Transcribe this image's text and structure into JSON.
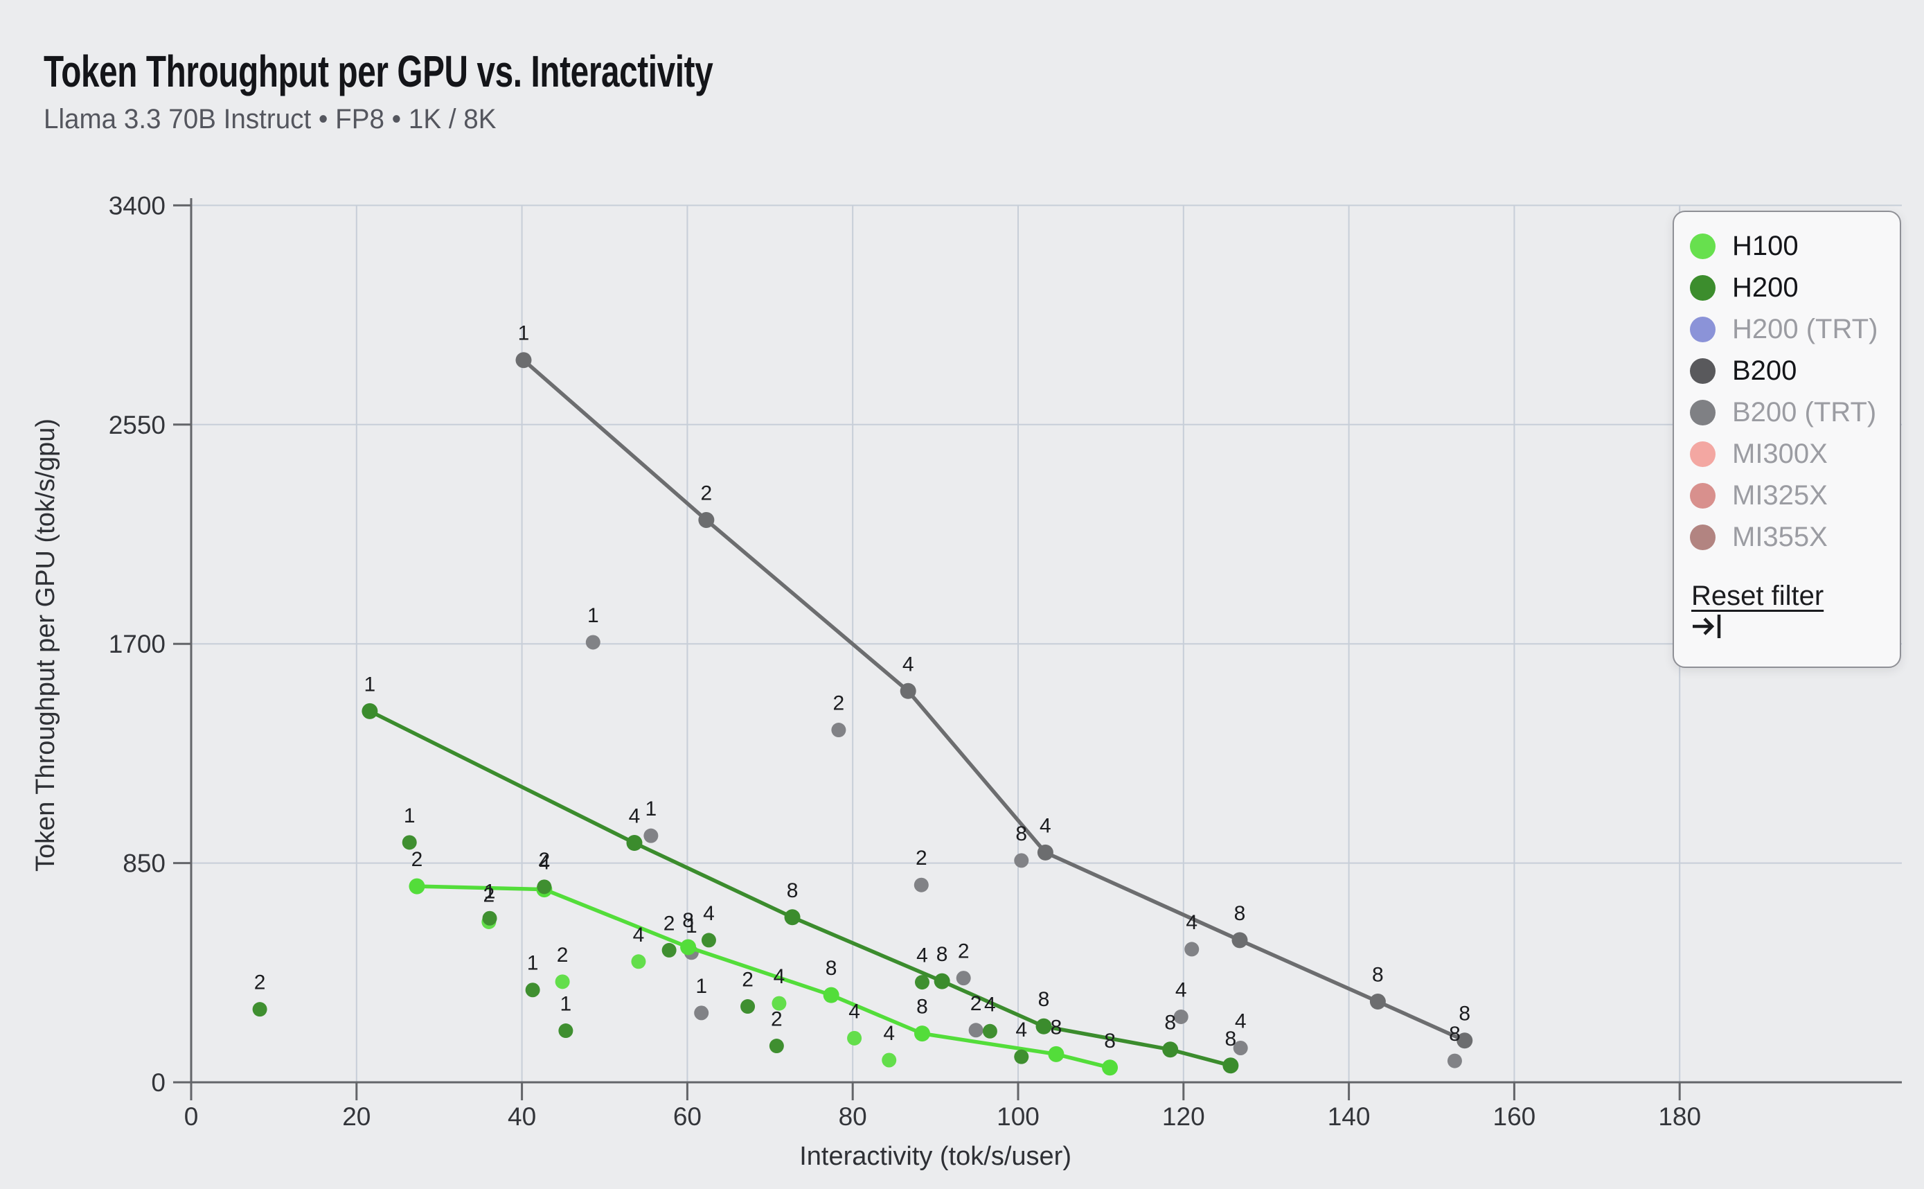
{
  "title": "Token Throughput per GPU vs. Interactivity",
  "subtitle": "Llama 3.3 70B Instruct • FP8 • 1K / 8K",
  "legend": {
    "items": [
      {
        "label": "H100",
        "color": "#67e04e",
        "active": true
      },
      {
        "label": "H200",
        "color": "#3c8d2d",
        "active": true
      },
      {
        "label": "H200 (TRT)",
        "color": "#8b93d8",
        "active": false
      },
      {
        "label": "B200",
        "color": "#59595c",
        "active": true
      },
      {
        "label": "B200 (TRT)",
        "color": "#7f8084",
        "active": false
      },
      {
        "label": "MI300X",
        "color": "#f3a7a2",
        "active": false
      },
      {
        "label": "MI325X",
        "color": "#d8908d",
        "active": false
      },
      {
        "label": "MI355X",
        "color": "#b28481",
        "active": false
      }
    ],
    "reset_label": "Reset filter",
    "collapse_icon": "tab-arrow-right"
  },
  "chart_data": {
    "type": "scatter",
    "title": "Token Throughput per GPU vs. Interactivity",
    "subtitle": "Llama 3.3 70B Instruct • FP8 • 1K / 8K",
    "xlabel": "Interactivity (tok/s/user)",
    "ylabel": "Token Throughput per GPU (tok/s/gpu)",
    "xlim": [
      0,
      180
    ],
    "ylim": [
      0,
      3400
    ],
    "x_ticks": [
      0,
      20,
      40,
      60,
      80,
      100,
      120,
      140,
      160,
      180
    ],
    "y_ticks": [
      0,
      850,
      1700,
      2550,
      3400
    ],
    "grid": true,
    "legend_position": "right",
    "point_label_meaning": "tensor-parallel size (number of GPUs)",
    "series": [
      {
        "name": "B200",
        "line_color": "#6c6d6f",
        "point_color": "#818286",
        "pareto_line": [
          {
            "x": 40.2,
            "y": 2800,
            "label": "1"
          },
          {
            "x": 62.3,
            "y": 2180,
            "label": "2"
          },
          {
            "x": 86.7,
            "y": 1517,
            "label": "4"
          },
          {
            "x": 103.3,
            "y": 891,
            "label": "4"
          },
          {
            "x": 126.8,
            "y": 551,
            "label": "8"
          },
          {
            "x": 143.5,
            "y": 313,
            "label": "8"
          },
          {
            "x": 154.0,
            "y": 162,
            "label": "8"
          }
        ],
        "points": [
          {
            "x": 48.6,
            "y": 1706,
            "label": "1"
          },
          {
            "x": 55.6,
            "y": 956,
            "label": "1"
          },
          {
            "x": 60.5,
            "y": 503,
            "label": "1"
          },
          {
            "x": 61.7,
            "y": 269,
            "label": "1"
          },
          {
            "x": 78.3,
            "y": 1366,
            "label": "2"
          },
          {
            "x": 88.3,
            "y": 765,
            "label": "2"
          },
          {
            "x": 93.4,
            "y": 404,
            "label": "2"
          },
          {
            "x": 94.9,
            "y": 202,
            "label": "2"
          },
          {
            "x": 100.4,
            "y": 860,
            "label": "8"
          },
          {
            "x": 119.7,
            "y": 254,
            "label": "4"
          },
          {
            "x": 121.0,
            "y": 516,
            "label": "4"
          },
          {
            "x": 126.9,
            "y": 133,
            "label": "4"
          },
          {
            "x": 152.8,
            "y": 83,
            "label": "8"
          }
        ]
      },
      {
        "name": "H100",
        "line_color": "#53dd3a",
        "point_color": "#63de4b",
        "pareto_line": [
          {
            "x": 27.3,
            "y": 760,
            "label": "2"
          },
          {
            "x": 42.7,
            "y": 748,
            "label": "4"
          },
          {
            "x": 60.1,
            "y": 524,
            "label": "8"
          },
          {
            "x": 77.4,
            "y": 338,
            "label": "8"
          },
          {
            "x": 88.4,
            "y": 189,
            "label": "8"
          },
          {
            "x": 104.6,
            "y": 109,
            "label": "8"
          },
          {
            "x": 111.1,
            "y": 57,
            "label": "8"
          }
        ],
        "points": [
          {
            "x": 36.0,
            "y": 622,
            "label": "2"
          },
          {
            "x": 44.9,
            "y": 390,
            "label": "2"
          },
          {
            "x": 54.1,
            "y": 468,
            "label": "4"
          },
          {
            "x": 71.1,
            "y": 306,
            "label": "4"
          },
          {
            "x": 80.2,
            "y": 171,
            "label": "4"
          },
          {
            "x": 84.4,
            "y": 86,
            "label": "4"
          }
        ]
      },
      {
        "name": "H200",
        "line_color": "#3b8c2d",
        "point_color": "#3f8f30",
        "pareto_line": [
          {
            "x": 21.6,
            "y": 1439,
            "label": "1"
          },
          {
            "x": 53.6,
            "y": 928,
            "label": "4"
          },
          {
            "x": 72.7,
            "y": 640,
            "label": "8"
          },
          {
            "x": 90.8,
            "y": 392,
            "label": "8"
          },
          {
            "x": 103.1,
            "y": 217,
            "label": "8"
          },
          {
            "x": 118.4,
            "y": 127,
            "label": "8"
          },
          {
            "x": 125.7,
            "y": 65,
            "label": "8"
          }
        ],
        "points": [
          {
            "x": 8.3,
            "y": 283,
            "label": "2"
          },
          {
            "x": 26.4,
            "y": 930,
            "label": "1"
          },
          {
            "x": 36.1,
            "y": 636,
            "label": "1"
          },
          {
            "x": 41.3,
            "y": 358,
            "label": "1"
          },
          {
            "x": 42.7,
            "y": 758,
            "label": "2"
          },
          {
            "x": 45.3,
            "y": 200,
            "label": "1"
          },
          {
            "x": 57.8,
            "y": 512,
            "label": "2"
          },
          {
            "x": 62.6,
            "y": 551,
            "label": "4"
          },
          {
            "x": 67.3,
            "y": 294,
            "label": "2"
          },
          {
            "x": 70.8,
            "y": 141,
            "label": "2"
          },
          {
            "x": 88.4,
            "y": 388,
            "label": "4"
          },
          {
            "x": 96.6,
            "y": 198,
            "label": "4"
          },
          {
            "x": 100.4,
            "y": 99,
            "label": "4"
          }
        ]
      }
    ]
  }
}
